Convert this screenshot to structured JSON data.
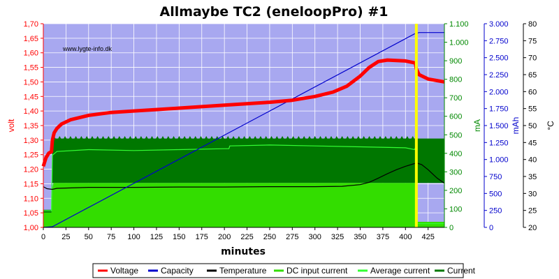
{
  "chart_data": {
    "type": "line",
    "title": "Allmaybe TC2 (eneloopPro) #1",
    "watermark": "www.lygte-info.dk",
    "xlabel": "minutes",
    "xlim": [
      0,
      443
    ],
    "xticks": [
      0,
      25,
      50,
      75,
      100,
      125,
      150,
      175,
      200,
      225,
      250,
      275,
      300,
      325,
      350,
      375,
      400,
      425
    ],
    "grid": true,
    "colors": {
      "plot_bg": "#a8a8f0",
      "grid": "#ffffff",
      "voltage": "#ff0000",
      "capacity": "#0000cc",
      "temperature": "#000000",
      "dc_input": "#33dd00",
      "average": "#33ff33",
      "current": "#007700",
      "marker": "#ffff00",
      "volt_axis": "#ff0000",
      "ma_axis": "#008800",
      "mah_axis": "#0000cc",
      "c_axis": "#000000"
    },
    "marker_x": 412,
    "axes": {
      "volt": {
        "label": "volt",
        "min": 1.0,
        "max": 1.7,
        "ticks": [
          "1,00",
          "1,05",
          "1,10",
          "1,15",
          "1,20",
          "1,25",
          "1,30",
          "1,35",
          "1,40",
          "1,45",
          "1,50",
          "1,55",
          "1,60",
          "1,65",
          "1,70"
        ]
      },
      "ma": {
        "label": "mA",
        "min": 0,
        "max": 1100,
        "ticks": [
          "0",
          "100",
          "200",
          "300",
          "400",
          "500",
          "600",
          "700",
          "800",
          "900",
          "1.000",
          "1.100"
        ]
      },
      "mah": {
        "label": "mAh",
        "min": 0,
        "max": 3000,
        "ticks": [
          "0",
          "250",
          "500",
          "750",
          "1.000",
          "1.250",
          "1.500",
          "1.750",
          "2.000",
          "2.250",
          "2.500",
          "2.750",
          "3.000"
        ]
      },
      "temp": {
        "label": "°C",
        "min": 20,
        "max": 80,
        "ticks": [
          "20",
          "25",
          "30",
          "35",
          "40",
          "45",
          "50",
          "55",
          "60",
          "65",
          "70",
          "75",
          "80"
        ]
      }
    },
    "legend": [
      "Voltage",
      "Capacity",
      "Temperature",
      "DC input current",
      "Average current",
      "Current"
    ],
    "series": [
      {
        "name": "Voltage",
        "axis": "volt",
        "x": [
          0,
          3,
          6,
          9,
          10,
          12,
          15,
          20,
          30,
          50,
          75,
          100,
          150,
          200,
          250,
          275,
          300,
          320,
          335,
          350,
          360,
          370,
          380,
          400,
          411,
          412,
          415,
          425,
          443
        ],
        "y": [
          1.21,
          1.24,
          1.255,
          1.26,
          1.3,
          1.325,
          1.34,
          1.355,
          1.37,
          1.385,
          1.395,
          1.4,
          1.41,
          1.42,
          1.43,
          1.437,
          1.45,
          1.465,
          1.485,
          1.52,
          1.55,
          1.57,
          1.575,
          1.572,
          1.565,
          1.545,
          1.525,
          1.51,
          1.5
        ]
      },
      {
        "name": "Capacity",
        "axis": "mah",
        "x": [
          0,
          10,
          410,
          415,
          443
        ],
        "y": [
          0,
          10,
          2850,
          2870,
          2870
        ]
      },
      {
        "name": "Temperature",
        "axis": "temp",
        "x": [
          0,
          4,
          10,
          15,
          50,
          100,
          150,
          200,
          250,
          300,
          330,
          350,
          360,
          370,
          380,
          390,
          400,
          410,
          412,
          418,
          425,
          435,
          443
        ],
        "y": [
          32,
          31.4,
          31.2,
          31.5,
          31.8,
          31.8,
          31.9,
          31.9,
          32,
          32,
          32.1,
          32.6,
          33.3,
          34.5,
          35.8,
          37,
          38,
          38.8,
          39,
          38.5,
          37,
          34.5,
          33
        ]
      },
      {
        "name": "DC input current",
        "axis": "ma",
        "x": [
          0,
          9,
          10,
          11,
          412,
          413,
          443
        ],
        "y": [
          80,
          80,
          210,
          240,
          240,
          30,
          30
        ]
      },
      {
        "name": "Average current",
        "axis": "ma",
        "x": [
          0,
          9,
          10,
          15,
          50,
          100,
          150,
          200,
          205,
          206,
          250,
          300,
          350,
          400,
          410,
          411,
          413,
          443
        ],
        "y": [
          90,
          90,
          390,
          410,
          420,
          415,
          420,
          425,
          425,
          440,
          445,
          440,
          435,
          430,
          420,
          430,
          20,
          20
        ]
      },
      {
        "name": "Current",
        "axis": "ma",
        "x": [
          0,
          9,
          10,
          443
        ],
        "y_max": [
          95,
          95,
          480,
          480
        ],
        "y_min": [
          70,
          70,
          240,
          240
        ]
      }
    ]
  }
}
